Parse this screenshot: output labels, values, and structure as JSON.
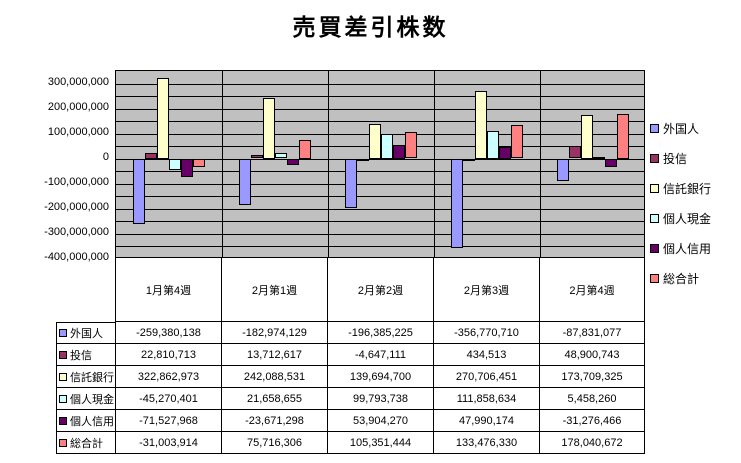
{
  "title": "売買差引株数",
  "chart_data": {
    "type": "bar",
    "title": "売買差引株数",
    "categories": [
      "1月第4週",
      "2月第1週",
      "2月第2週",
      "2月第3週",
      "2月第4週"
    ],
    "series": [
      {
        "name": "外国人",
        "color": "#9999FF",
        "values": [
          -259380138,
          -182974129,
          -196385225,
          -356770710,
          -87831077
        ]
      },
      {
        "name": "投信",
        "color": "#993366",
        "values": [
          22810713,
          13712617,
          -4647111,
          434513,
          48900743
        ]
      },
      {
        "name": "信託銀行",
        "color": "#FFFFCC",
        "values": [
          322862973,
          242088531,
          139694700,
          270706451,
          173709325
        ]
      },
      {
        "name": "個人現金",
        "color": "#CCFFFF",
        "values": [
          -45270401,
          21658655,
          99793738,
          111858634,
          5458260
        ]
      },
      {
        "name": "個人信用",
        "color": "#660066",
        "values": [
          -71527968,
          -23671298,
          53904270,
          47990174,
          -31276466
        ]
      },
      {
        "name": "総合計",
        "color": "#FF8080",
        "values": [
          -31003914,
          75716306,
          105351444,
          133476330,
          178040672
        ]
      }
    ],
    "y_axis": {
      "max": 350000000,
      "min": -400000000,
      "grid_step": 50000000,
      "tick_labels": [
        "300,000,000",
        "200,000,000",
        "100,000,000",
        "0",
        "-100,000,000",
        "-200,000,000",
        "-300,000,000",
        "-400,000,000"
      ]
    },
    "plot_bg": "#C0C0C0",
    "grid": true,
    "legend_position": "right",
    "data_table": true
  }
}
